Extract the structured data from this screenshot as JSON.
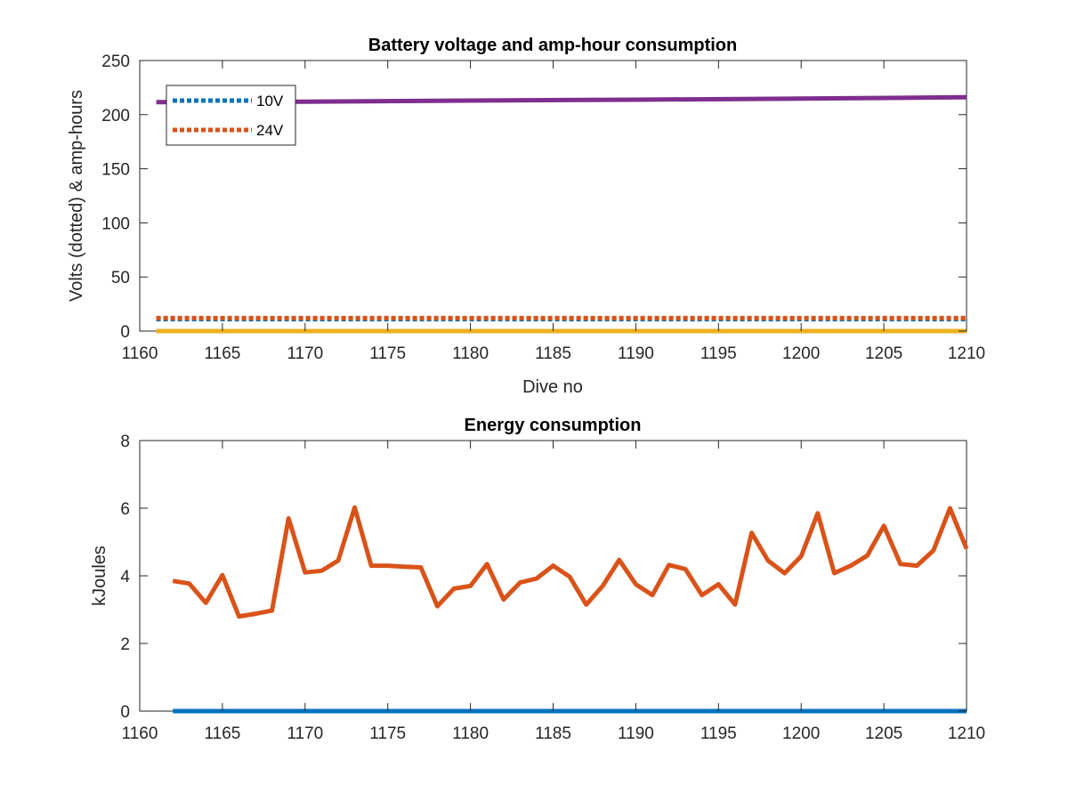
{
  "chart_data": [
    {
      "type": "line",
      "title": "Battery voltage and amp-hour consumption",
      "xlabel": "Dive no",
      "ylabel": "Volts (dotted) & amp-hours",
      "xlim": [
        1160,
        1210
      ],
      "ylim": [
        0,
        250
      ],
      "xticks": [
        1160,
        1165,
        1170,
        1175,
        1180,
        1185,
        1190,
        1195,
        1200,
        1205,
        1210
      ],
      "yticks": [
        0,
        50,
        100,
        150,
        200,
        250
      ],
      "grid": false,
      "legend": {
        "placement": "top-left",
        "entries": [
          "10V",
          "24V"
        ]
      },
      "series": [
        {
          "name": "10V",
          "style": "dotted",
          "color": "#0072BD",
          "x": [
            1161,
            1210
          ],
          "y": [
            11,
            11
          ]
        },
        {
          "name": "24V",
          "style": "dotted",
          "color": "#D95319",
          "x": [
            1161,
            1210
          ],
          "y": [
            12,
            12
          ]
        },
        {
          "style": "solid",
          "color": "#EDB120",
          "x": [
            1161,
            1210
          ],
          "y": [
            0,
            0
          ]
        },
        {
          "style": "solid",
          "color": "#7E2F8E",
          "x": [
            1161,
            1170,
            1180,
            1190,
            1200,
            1210
          ],
          "y": [
            211.5,
            212,
            213,
            213.8,
            214.8,
            216
          ]
        }
      ]
    },
    {
      "type": "line",
      "title": "Energy consumption",
      "xlabel": "",
      "ylabel": "kJoules",
      "xlim": [
        1160,
        1210
      ],
      "ylim": [
        0,
        8
      ],
      "xticks": [
        1160,
        1165,
        1170,
        1175,
        1180,
        1185,
        1190,
        1195,
        1200,
        1205,
        1210
      ],
      "yticks": [
        0,
        2,
        4,
        6,
        8
      ],
      "grid": false,
      "series": [
        {
          "style": "solid",
          "color": "#0072BD",
          "x": [
            1162,
            1210
          ],
          "y": [
            0,
            0
          ]
        },
        {
          "style": "solid",
          "color": "#D95319",
          "x": [
            1162,
            1163,
            1164,
            1165,
            1166,
            1167,
            1168,
            1169,
            1170,
            1171,
            1172,
            1173,
            1174,
            1175,
            1176,
            1177,
            1178,
            1179,
            1180,
            1181,
            1182,
            1183,
            1184,
            1185,
            1186,
            1187,
            1188,
            1189,
            1190,
            1191,
            1192,
            1193,
            1194,
            1195,
            1196,
            1197,
            1198,
            1199,
            1200,
            1201,
            1202,
            1203,
            1204,
            1205,
            1206,
            1207,
            1208,
            1209,
            1210
          ],
          "y": [
            3.85,
            3.77,
            3.2,
            4.02,
            2.8,
            2.88,
            2.97,
            5.7,
            4.1,
            4.15,
            4.45,
            6.02,
            4.3,
            4.3,
            4.27,
            4.25,
            3.1,
            3.62,
            3.7,
            4.35,
            3.3,
            3.8,
            3.92,
            4.3,
            3.97,
            3.15,
            3.7,
            4.47,
            3.75,
            3.43,
            4.32,
            4.2,
            3.43,
            3.75,
            3.15,
            5.27,
            4.45,
            4.08,
            4.58,
            5.85,
            4.08,
            4.3,
            4.6,
            5.48,
            4.35,
            4.3,
            4.75,
            6.0,
            4.8
          ]
        }
      ]
    }
  ]
}
